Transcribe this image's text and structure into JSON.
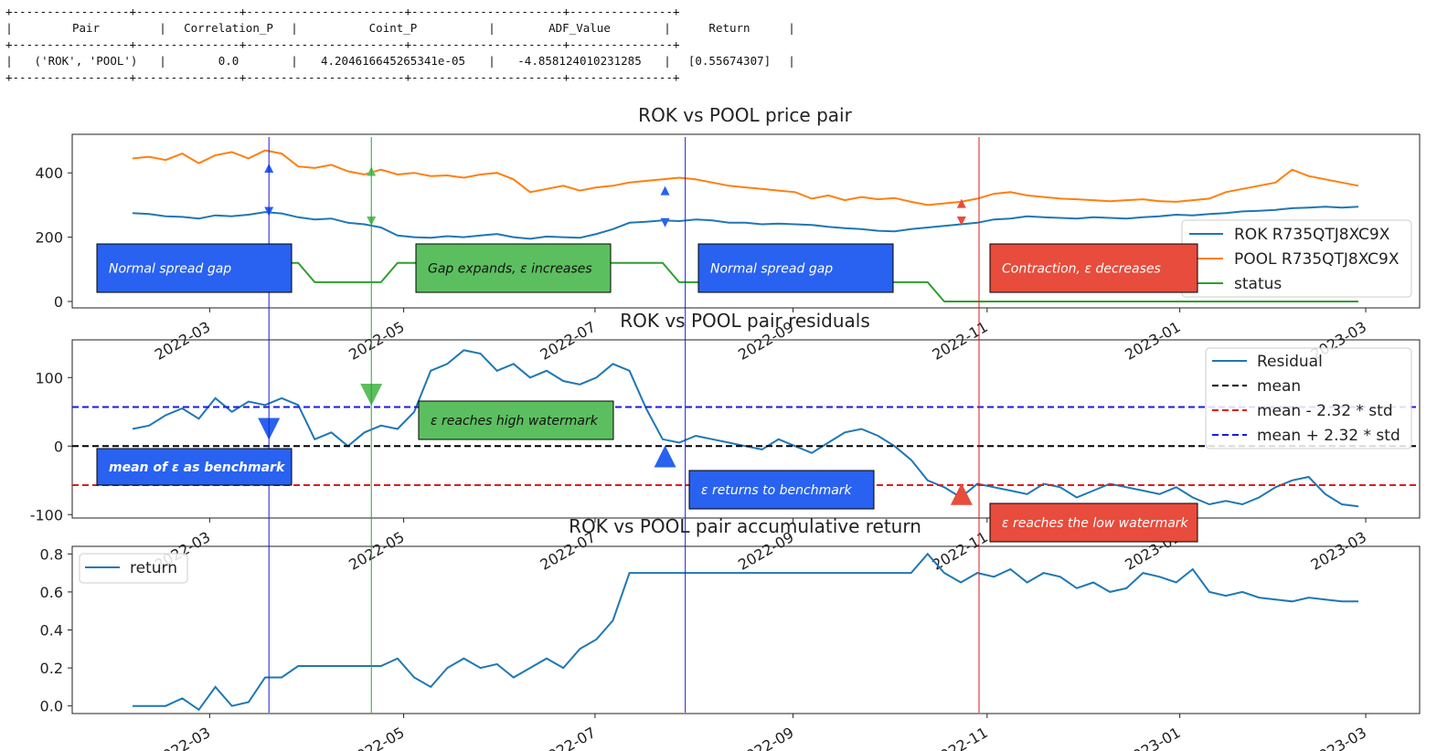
{
  "stats_table": {
    "columns": [
      "Pair",
      "Correlation_P",
      "Coint_P",
      "ADF_Value",
      "Return"
    ],
    "rows": [
      [
        "('ROK', 'POOL')",
        "0.0",
        "4.204616645265341e-05",
        "-4.858124010231285",
        "[0.55674307]"
      ]
    ]
  },
  "colors": {
    "rok": "#1f77b4",
    "pool": "#ff7f0e",
    "status": "#2ca02c",
    "mean": "#000000",
    "lower_band": "#e01b1b",
    "upper_band": "#1a1adf",
    "annotation_blue": "#2962f0",
    "annotation_green": "#5cbf5f",
    "annotation_red": "#e74c3c"
  },
  "x_tick_labels": [
    "2022-03",
    "2022-05",
    "2022-07",
    "2022-09",
    "2022-11",
    "2023-01",
    "2023-03"
  ],
  "chart_data": [
    {
      "type": "line",
      "title": "ROK vs POOL price pair",
      "ylim": [
        -20,
        520
      ],
      "yticks": [
        0,
        200,
        400
      ],
      "x_range": [
        "2022-02-08",
        "2023-02-26"
      ],
      "legend": "right",
      "series": [
        {
          "name": "ROK R735QTJ8XC9X",
          "color": "#1f77b4",
          "values": [
            275,
            272,
            265,
            263,
            258,
            268,
            265,
            270,
            278,
            274,
            262,
            255,
            258,
            245,
            240,
            230,
            205,
            200,
            198,
            203,
            200,
            205,
            210,
            200,
            195,
            202,
            200,
            198,
            210,
            225,
            245,
            248,
            252,
            250,
            255,
            252,
            245,
            245,
            240,
            242,
            240,
            238,
            232,
            228,
            225,
            220,
            218,
            225,
            230,
            235,
            240,
            245,
            255,
            258,
            265,
            262,
            260,
            258,
            262,
            260,
            258,
            262,
            265,
            270,
            268,
            272,
            275,
            280,
            282,
            285,
            290,
            292,
            295,
            292,
            295
          ]
        },
        {
          "name": "POOL R735QTJ8XC9X",
          "color": "#ff7f0e",
          "values": [
            445,
            450,
            440,
            460,
            430,
            455,
            465,
            445,
            470,
            460,
            420,
            415,
            425,
            405,
            395,
            410,
            395,
            400,
            390,
            392,
            385,
            395,
            400,
            380,
            340,
            350,
            360,
            345,
            355,
            360,
            370,
            375,
            380,
            385,
            380,
            370,
            360,
            355,
            350,
            345,
            340,
            320,
            330,
            315,
            325,
            318,
            322,
            310,
            300,
            305,
            310,
            320,
            335,
            340,
            330,
            325,
            320,
            318,
            315,
            312,
            315,
            318,
            312,
            310,
            315,
            320,
            340,
            350,
            360,
            370,
            410,
            390,
            380,
            370,
            360
          ]
        },
        {
          "name": "status",
          "color": "#2ca02c",
          "values": [
            120,
            120,
            120,
            120,
            120,
            120,
            120,
            120,
            120,
            120,
            120,
            60,
            60,
            60,
            60,
            60,
            120,
            120,
            120,
            120,
            120,
            120,
            120,
            120,
            120,
            120,
            120,
            120,
            120,
            120,
            120,
            120,
            120,
            60,
            60,
            60,
            60,
            60,
            60,
            60,
            60,
            60,
            60,
            60,
            60,
            60,
            60,
            60,
            60,
            0,
            0,
            0,
            0,
            0,
            0,
            0,
            0,
            0,
            0,
            0,
            0,
            0,
            0,
            0,
            0,
            0,
            0,
            0,
            0,
            0,
            0,
            0,
            0,
            0,
            0
          ]
        }
      ],
      "markers": [
        {
          "x": 0.146,
          "y": 415,
          "color": "#2962f0",
          "dir": "up"
        },
        {
          "x": 0.146,
          "y": 280,
          "color": "#2962f0",
          "dir": "down"
        },
        {
          "x": 0.222,
          "y": 405,
          "color": "#5cbf5f",
          "dir": "up"
        },
        {
          "x": 0.222,
          "y": 250,
          "color": "#5cbf5f",
          "dir": "down"
        },
        {
          "x": 0.44,
          "y": 345,
          "color": "#2962f0",
          "dir": "up"
        },
        {
          "x": 0.44,
          "y": 245,
          "color": "#2962f0",
          "dir": "down"
        },
        {
          "x": 0.66,
          "y": 305,
          "color": "#e74c3c",
          "dir": "up"
        },
        {
          "x": 0.66,
          "y": 250,
          "color": "#e74c3c",
          "dir": "down"
        }
      ]
    },
    {
      "type": "line",
      "title": "ROK vs POOL pair residuals",
      "ylim": [
        -105,
        155
      ],
      "yticks": [
        -100,
        0,
        100
      ],
      "legend": "top-right",
      "series": [
        {
          "name": "Residual",
          "color": "#1f77b4",
          "values": [
            25,
            30,
            45,
            55,
            40,
            70,
            50,
            65,
            60,
            70,
            60,
            10,
            20,
            0,
            20,
            30,
            25,
            50,
            110,
            120,
            140,
            135,
            110,
            120,
            100,
            110,
            95,
            90,
            100,
            120,
            110,
            55,
            10,
            5,
            15,
            10,
            5,
            0,
            -5,
            10,
            0,
            -10,
            5,
            20,
            25,
            15,
            0,
            -20,
            -50,
            -60,
            -75,
            -55,
            -60,
            -65,
            -70,
            -55,
            -60,
            -75,
            -65,
            -55,
            -60,
            -65,
            -70,
            -60,
            -75,
            -85,
            -80,
            -85,
            -75,
            -60,
            -50,
            -45,
            -70,
            -85,
            -88
          ]
        },
        {
          "name": "mean",
          "color": "#000000",
          "dashed": true,
          "level": 0
        },
        {
          "name": "mean - 2.32 * std",
          "color": "#e01b1b",
          "dashed": true,
          "level": -57
        },
        {
          "name": "mean + 2.32 * std",
          "color": "#1a1adf",
          "dashed": true,
          "level": 57
        }
      ],
      "markers": [
        {
          "x": 0.146,
          "y": 25,
          "color": "#2962f0",
          "dir": "down"
        },
        {
          "x": 0.222,
          "y": 75,
          "color": "#5cbf5f",
          "dir": "down"
        },
        {
          "x": 0.44,
          "y": -15,
          "color": "#2962f0",
          "dir": "up"
        },
        {
          "x": 0.66,
          "y": -70,
          "color": "#e74c3c",
          "dir": "up"
        }
      ]
    },
    {
      "type": "line",
      "title": "ROK vs POOL pair accumulative return",
      "ylim": [
        -0.04,
        0.84
      ],
      "yticks": [
        0.0,
        0.2,
        0.4,
        0.6,
        0.8
      ],
      "legend": "top-left",
      "series": [
        {
          "name": "return",
          "color": "#1f77b4",
          "values": [
            0.0,
            0.0,
            0.0,
            0.04,
            -0.02,
            0.1,
            0.0,
            0.02,
            0.15,
            0.15,
            0.21,
            0.21,
            0.21,
            0.21,
            0.21,
            0.21,
            0.25,
            0.15,
            0.1,
            0.2,
            0.25,
            0.2,
            0.22,
            0.15,
            0.2,
            0.25,
            0.2,
            0.3,
            0.35,
            0.45,
            0.7,
            0.7,
            0.7,
            0.7,
            0.7,
            0.7,
            0.7,
            0.7,
            0.7,
            0.7,
            0.7,
            0.7,
            0.7,
            0.7,
            0.7,
            0.7,
            0.7,
            0.7,
            0.8,
            0.7,
            0.65,
            0.7,
            0.68,
            0.72,
            0.65,
            0.7,
            0.68,
            0.62,
            0.65,
            0.6,
            0.62,
            0.7,
            0.68,
            0.65,
            0.72,
            0.6,
            0.58,
            0.6,
            0.57,
            0.56,
            0.55,
            0.57,
            0.56,
            0.55,
            0.55
          ]
        }
      ]
    }
  ],
  "annotations": [
    {
      "text": "Normal spread gap",
      "color": "#2962f0"
    },
    {
      "text": "Gap expands, ε increases",
      "color": "#5cbf5f"
    },
    {
      "text": "Normal spread gap",
      "color": "#2962f0"
    },
    {
      "text": "Contraction, ε decreases",
      "color": "#e74c3c"
    },
    {
      "text": "mean of ε as benchmark",
      "color": "#2962f0"
    },
    {
      "text": "ε reaches high watermark",
      "color": "#5cbf5f"
    },
    {
      "text": "ε returns to benchmark",
      "color": "#2962f0"
    },
    {
      "text": "ε reaches the low watermark",
      "color": "#e74c3c"
    }
  ]
}
